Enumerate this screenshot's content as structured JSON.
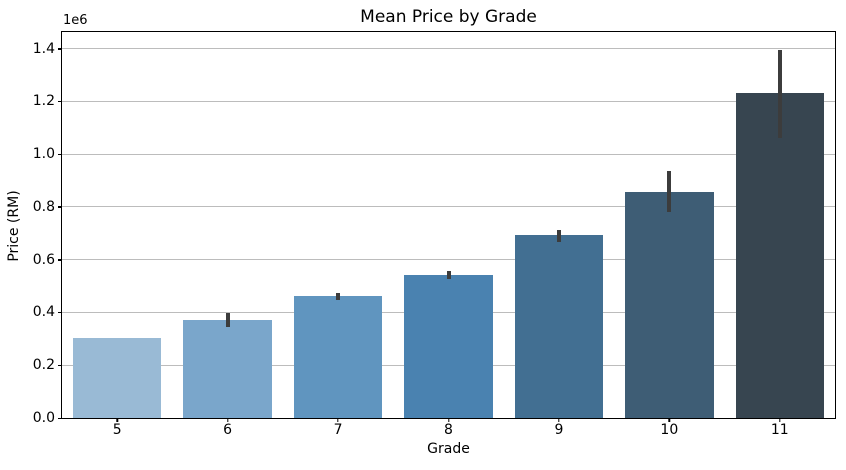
{
  "figure": {
    "background_color": "#ffffff",
    "spine_color": "#000000",
    "grid_color": "#bcbcbc"
  },
  "chart_data": {
    "type": "bar",
    "title": "Mean Price by Grade",
    "xlabel": "Grade",
    "ylabel": "Price (RM)",
    "y_offset_text": "1e6",
    "categories": [
      "5",
      "6",
      "7",
      "8",
      "9",
      "10",
      "11"
    ],
    "series": [
      {
        "name": "Mean Price (RM)",
        "values": [
          305000,
          372000,
          461000,
          543000,
          694000,
          858000,
          1232000
        ],
        "error_low": [
          null,
          345000,
          449000,
          528000,
          668000,
          780000,
          1060000
        ],
        "error_high": [
          null,
          398000,
          472000,
          558000,
          712000,
          935000,
          1395000
        ]
      }
    ],
    "bar_colors": [
      "#99bad5",
      "#7aa6cb",
      "#6095bf",
      "#4a82b0",
      "#426f92",
      "#3e5d75",
      "#374550"
    ],
    "errorbar_color": "#3c3c3c",
    "ylim": [
      0,
      1463000
    ],
    "yticks": [
      0,
      200000,
      400000,
      600000,
      800000,
      1000000,
      1200000,
      1400000
    ],
    "ytick_labels": [
      "0.0",
      "0.2",
      "0.4",
      "0.6",
      "0.8",
      "1.0",
      "1.2",
      "1.4"
    ],
    "grid": "y",
    "legend": "none"
  }
}
